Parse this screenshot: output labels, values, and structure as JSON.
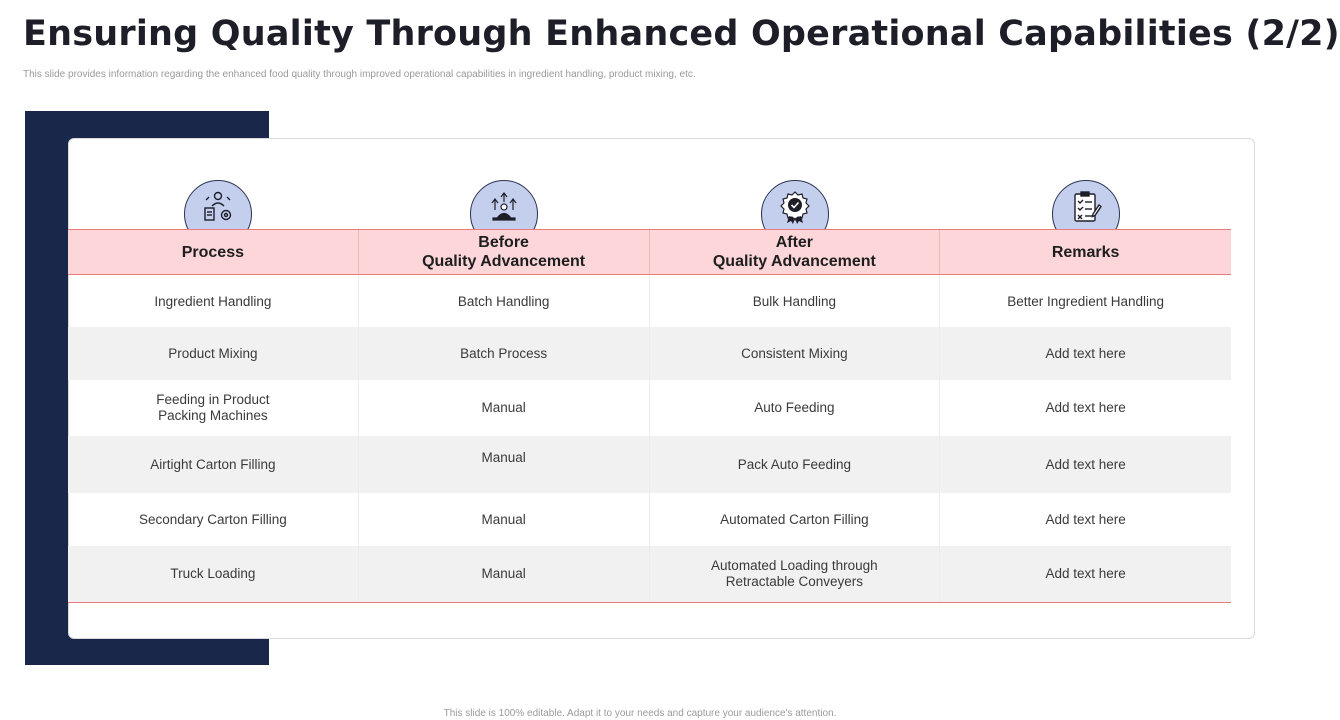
{
  "title": "Ensuring Quality Through Enhanced Operational Capabilities (2/2)",
  "subtitle": "This slide provides information regarding the enhanced food quality through improved operational capabilities in ingredient handling, product mixing, etc.",
  "footer": "This slide is 100% editable. Adapt it to your needs and capture your audience's attention.",
  "icons": [
    "worker-process-icon",
    "growth-arrows-icon",
    "quality-badge-icon",
    "checklist-icon"
  ],
  "colors": {
    "navy": "#18274a",
    "header_bg": "#fcd6d8",
    "accent_line": "#e77b7f",
    "icon_bg": "#c4cfee"
  },
  "table": {
    "headers": [
      "Process",
      "Before\nQuality Advancement",
      "After\nQuality Advancement",
      "Remarks"
    ],
    "rows": [
      [
        "Ingredient Handling",
        "Batch Handling",
        "Bulk Handling",
        "Better Ingredient Handling"
      ],
      [
        "Product Mixing",
        "Batch Process",
        "Consistent Mixing",
        "Add text here"
      ],
      [
        "Feeding in Product\nPacking Machines",
        "Manual",
        "Auto Feeding",
        "Add text here"
      ],
      [
        "Airtight Carton Filling",
        "Manual",
        "Pack Auto Feeding",
        "Add text here"
      ],
      [
        "Secondary Carton Filling",
        "Manual",
        "Automated Carton Filling",
        "Add text here"
      ],
      [
        "Truck Loading",
        "Manual",
        "Automated Loading through\nRetractable Conveyers",
        "Add text here"
      ]
    ]
  }
}
